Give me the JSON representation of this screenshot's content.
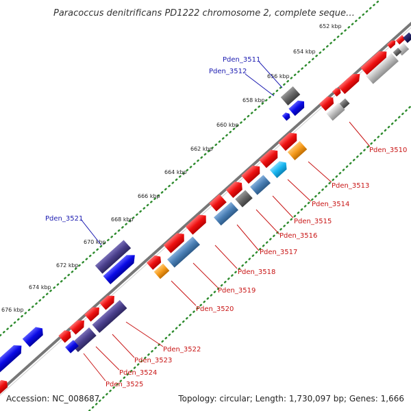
{
  "title": "Paracoccus denitrificans PD1222 chromosome 2, complete seque…",
  "footer": {
    "accession": "Accession: NC_008687",
    "summary": "Topology: circular; Length: 1,730,097 bp; Genes: 1,666"
  },
  "ruler": [
    "652 kbp",
    "654 kbp",
    "656 kbp",
    "658 kbp",
    "660 kbp",
    "662 kbp",
    "664 kbp",
    "666 kbp",
    "668 kbp",
    "670 kbp",
    "672 kbp",
    "674 kbp",
    "676 kbp"
  ],
  "gene_labels": {
    "outer": [
      "Pden_3511",
      "Pden_3512",
      "Pden_3521"
    ],
    "inner": [
      "Pden_3510",
      "Pden_3513",
      "Pden_3514",
      "Pden_3515",
      "Pden_3516",
      "Pden_3517",
      "Pden_3518",
      "Pden_3519",
      "Pden_3520",
      "Pden_3522",
      "Pden_3523",
      "Pden_3524",
      "Pden_3525"
    ]
  },
  "colors": {
    "backbone": "#777777",
    "ruler_dots": "#2e8b2e",
    "red_gene": "#ee1111",
    "blue_gene": "#0a0ae6",
    "dark_slate_gene": "#4a3f8c",
    "steel_gene": "#4a7fb5",
    "sky_gene": "#19b6f0",
    "orange_gene": "#f59a1b",
    "gray_gene": "#666666",
    "light_gray_gene": "#bbbbbb",
    "outer_label": "#1a1ab0",
    "inner_label": "#c81414"
  }
}
